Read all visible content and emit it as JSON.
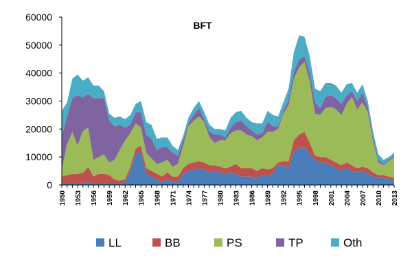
{
  "chart_data": {
    "type": "area",
    "stacked": true,
    "title": "BFT",
    "xlabel": "",
    "ylabel": "",
    "ylim": [
      0,
      60000
    ],
    "yticks": [
      0,
      10000,
      20000,
      30000,
      40000,
      50000,
      60000
    ],
    "yticklabels": [
      "0",
      "10000",
      "20000",
      "30000",
      "40000",
      "50000",
      "60000"
    ],
    "xticklabels": [
      "1950",
      "1953",
      "1956",
      "1959",
      "1962",
      "1965",
      "1968",
      "1971",
      "1974",
      "1977",
      "1980",
      "1983",
      "1986",
      "1989",
      "1992",
      "1995",
      "1998",
      "2001",
      "2004",
      "2007",
      "2010",
      "2013"
    ],
    "x": [
      1950,
      1951,
      1952,
      1953,
      1954,
      1955,
      1956,
      1957,
      1958,
      1959,
      1960,
      1961,
      1962,
      1963,
      1964,
      1965,
      1966,
      1967,
      1968,
      1969,
      1970,
      1971,
      1972,
      1973,
      1974,
      1975,
      1976,
      1977,
      1978,
      1979,
      1980,
      1981,
      1982,
      1983,
      1984,
      1985,
      1986,
      1987,
      1988,
      1989,
      1990,
      1991,
      1992,
      1993,
      1994,
      1995,
      1996,
      1997,
      1998,
      1999,
      2000,
      2001,
      2002,
      2003,
      2004,
      2005,
      2006,
      2007,
      2008,
      2009,
      2010,
      2011,
      2012,
      2013
    ],
    "grid": false,
    "legend_position": "bottom",
    "series": [
      {
        "name": "LL",
        "color": "#4a7ebb",
        "values": [
          500,
          500,
          500,
          500,
          800,
          1000,
          500,
          500,
          500,
          500,
          500,
          500,
          1000,
          5000,
          11000,
          12000,
          4000,
          3000,
          2000,
          1000,
          2000,
          1000,
          1000,
          4000,
          5000,
          5500,
          6000,
          5500,
          4500,
          5000,
          4500,
          4000,
          4500,
          4000,
          3000,
          3000,
          3000,
          2500,
          3500,
          3000,
          4000,
          7000,
          7000,
          6000,
          12000,
          13000,
          13500,
          11000,
          9000,
          8000,
          8000,
          7000,
          6000,
          5000,
          6000,
          5000,
          4500,
          5000,
          4000,
          3000,
          2500,
          2500,
          2000,
          1500
        ]
      },
      {
        "name": "BB",
        "color": "#c0504d",
        "values": [
          2500,
          3000,
          3500,
          3500,
          3500,
          5500,
          2500,
          3500,
          3500,
          3000,
          1500,
          1000,
          1000,
          1500,
          2000,
          2000,
          2000,
          2000,
          2000,
          2000,
          2500,
          2000,
          2000,
          2000,
          2500,
          2500,
          2500,
          2500,
          2500,
          2000,
          2000,
          2000,
          2000,
          3500,
          3000,
          3000,
          3000,
          2500,
          2500,
          2500,
          2000,
          1000,
          1500,
          2500,
          4000,
          5000,
          5500,
          4000,
          1500,
          2000,
          2000,
          2000,
          2000,
          2000,
          2000,
          2000,
          1500,
          1500,
          2000,
          1500,
          1000,
          1000,
          1000,
          1000
        ]
      },
      {
        "name": "PS",
        "color": "#9bbb59",
        "values": [
          2500,
          11000,
          15000,
          10000,
          15000,
          14000,
          6000,
          6000,
          7000,
          4500,
          7000,
          11000,
          14000,
          12000,
          9000,
          6500,
          5500,
          4500,
          3500,
          5000,
          4500,
          3500,
          4500,
          8000,
          13500,
          15000,
          16000,
          14500,
          10000,
          8000,
          9500,
          10000,
          12000,
          12000,
          13500,
          12000,
          11500,
          11000,
          11000,
          13500,
          13000,
          12000,
          17000,
          20000,
          22000,
          24000,
          25000,
          22000,
          15000,
          15000,
          17500,
          19000,
          19000,
          18000,
          21000,
          24500,
          21000,
          23000,
          20000,
          11000,
          4500,
          3500,
          5500,
          7500
        ]
      },
      {
        "name": "TP",
        "color": "#8064a2",
        "values": [
          12000,
          10000,
          12000,
          18000,
          12000,
          12000,
          22000,
          21000,
          20000,
          15000,
          12000,
          9000,
          4500,
          3000,
          4000,
          5500,
          6500,
          7000,
          5000,
          5500,
          4500,
          5000,
          3000,
          2000,
          1000,
          2000,
          3000,
          1000,
          2000,
          3000,
          2000,
          1000,
          2000,
          3000,
          3500,
          3000,
          2000,
          2000,
          1500,
          3500,
          2000,
          1000,
          1000,
          2000,
          2500,
          3000,
          2000,
          3000,
          4000,
          2500,
          4000,
          4000,
          4000,
          4000,
          3000,
          2000,
          3000,
          3500,
          2000,
          1500,
          1000,
          500,
          500,
          500
        ]
      },
      {
        "name": "Oth",
        "color": "#4bacc6",
        "values": [
          9000,
          5000,
          7000,
          7500,
          6000,
          6000,
          4500,
          4500,
          2500,
          2500,
          3000,
          3000,
          3000,
          3500,
          3000,
          4000,
          4500,
          5000,
          4000,
          3500,
          3500,
          2500,
          2000,
          1500,
          2000,
          2500,
          2500,
          2500,
          2500,
          2000,
          2000,
          2500,
          3500,
          3500,
          3500,
          3000,
          3000,
          4000,
          3500,
          4000,
          4000,
          3500,
          3000,
          4000,
          7000,
          8500,
          7000,
          6000,
          5000,
          6000,
          5000,
          4500,
          4500,
          4000,
          4000,
          3000,
          3000,
          3000,
          2000,
          2000,
          2000,
          1500,
          1000,
          1000
        ]
      }
    ]
  }
}
